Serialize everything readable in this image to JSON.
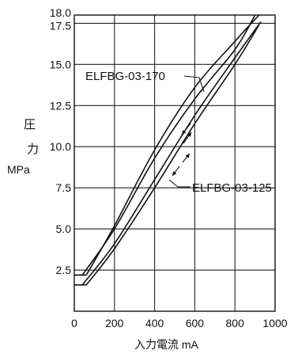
{
  "chart_data": {
    "type": "line",
    "xlabel": "入力電流 mA",
    "ylabel_lines": [
      "圧",
      "力",
      "MPa"
    ],
    "xlim": [
      0,
      1000
    ],
    "ylim": [
      0,
      18.0
    ],
    "x_ticks": [
      0,
      200,
      400,
      600,
      800,
      1000
    ],
    "x_tick_labels": [
      "0",
      "200",
      "400",
      "600",
      "800",
      "1000"
    ],
    "y_ticks": [
      2.5,
      5.0,
      7.5,
      10.0,
      12.5,
      15.0,
      17.5,
      18.0
    ],
    "y_tick_labels": [
      "2.5",
      "5.0",
      "7.5",
      "10.0",
      "12.5",
      "15.0",
      "17.5",
      "18.0"
    ],
    "grid": true,
    "annotations": [
      {
        "text": "ELFBG-03-170",
        "target": "upper_pair"
      },
      {
        "text": "ELFBG-03-125",
        "target": "lower_pair"
      }
    ],
    "series": [
      {
        "group": "upper_pair",
        "points": [
          [
            0,
            2.2
          ],
          [
            60,
            2.2
          ],
          [
            200,
            5.2
          ],
          [
            400,
            9.8
          ],
          [
            600,
            13.6
          ],
          [
            800,
            16.4
          ],
          [
            920,
            18.0
          ]
        ]
      },
      {
        "group": "upper_pair",
        "points": [
          [
            0,
            2.2
          ],
          [
            40,
            2.2
          ],
          [
            200,
            5.0
          ],
          [
            400,
            9.3
          ],
          [
            600,
            12.9
          ],
          [
            800,
            15.9
          ],
          [
            900,
            18.0
          ]
        ]
      },
      {
        "group": "lower_pair",
        "points": [
          [
            0,
            1.6
          ],
          [
            60,
            1.6
          ],
          [
            200,
            3.8
          ],
          [
            400,
            7.5
          ],
          [
            600,
            11.4
          ],
          [
            800,
            15.0
          ],
          [
            920,
            17.4
          ]
        ]
      },
      {
        "group": "lower_pair",
        "points": [
          [
            0,
            1.6
          ],
          [
            40,
            1.6
          ],
          [
            200,
            4.1
          ],
          [
            400,
            8.0
          ],
          [
            600,
            11.9
          ],
          [
            800,
            15.4
          ],
          [
            930,
            17.6
          ]
        ]
      }
    ]
  }
}
